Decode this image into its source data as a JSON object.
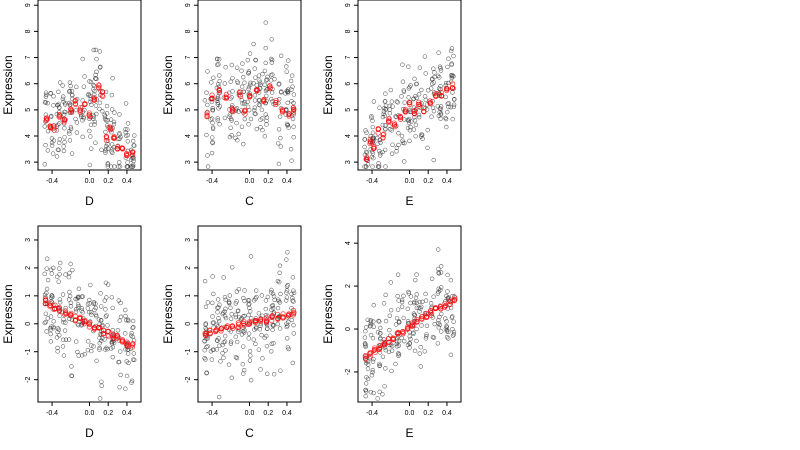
{
  "chart_data": [
    {
      "type": "scatter",
      "xlabel": "D",
      "ylabel": "Expression",
      "xlim": [
        -0.55,
        0.55
      ],
      "ylim": [
        2.7,
        9.2
      ],
      "xticks": [
        -0.4,
        0.0,
        0.2,
        0.4
      ],
      "xtick_labels": [
        "-0.4",
        "0.0",
        "0.2",
        "0.4"
      ],
      "yticks": [
        3,
        4,
        5,
        6,
        7,
        8,
        9
      ],
      "ytick_labels": [
        "3",
        "4",
        "5",
        "6",
        "7",
        "8",
        "9"
      ],
      "fit_points": [
        {
          "x": -0.46,
          "y": 4.6
        },
        {
          "x": -0.42,
          "y": 4.4
        },
        {
          "x": -0.38,
          "y": 4.3
        },
        {
          "x": -0.32,
          "y": 4.8
        },
        {
          "x": -0.27,
          "y": 4.6
        },
        {
          "x": -0.2,
          "y": 5.0
        },
        {
          "x": -0.15,
          "y": 5.3
        },
        {
          "x": -0.1,
          "y": 5.0
        },
        {
          "x": -0.05,
          "y": 5.2
        },
        {
          "x": 0.0,
          "y": 4.8
        },
        {
          "x": 0.05,
          "y": 5.4
        },
        {
          "x": 0.1,
          "y": 5.9
        },
        {
          "x": 0.14,
          "y": 5.6
        },
        {
          "x": 0.18,
          "y": 3.9
        },
        {
          "x": 0.22,
          "y": 4.3
        },
        {
          "x": 0.26,
          "y": 4.0
        },
        {
          "x": 0.3,
          "y": 3.6
        },
        {
          "x": 0.35,
          "y": 3.5
        },
        {
          "x": 0.4,
          "y": 3.3
        },
        {
          "x": 0.46,
          "y": 3.3
        }
      ]
    },
    {
      "type": "scatter",
      "xlabel": "C",
      "ylabel": "Expression",
      "xlim": [
        -0.55,
        0.55
      ],
      "ylim": [
        2.7,
        9.2
      ],
      "xticks": [
        -0.4,
        0.0,
        0.2,
        0.4
      ],
      "xtick_labels": [
        "-0.4",
        "0.0",
        "0.2",
        "0.4"
      ],
      "yticks": [
        3,
        4,
        5,
        6,
        7,
        8,
        9
      ],
      "ytick_labels": [
        "3",
        "4",
        "5",
        "6",
        "7",
        "8",
        "9"
      ],
      "fit_points": [
        {
          "x": -0.45,
          "y": 4.8
        },
        {
          "x": -0.4,
          "y": 5.5
        },
        {
          "x": -0.32,
          "y": 5.7
        },
        {
          "x": -0.25,
          "y": 5.5
        },
        {
          "x": -0.18,
          "y": 5.0
        },
        {
          "x": -0.1,
          "y": 5.6
        },
        {
          "x": -0.05,
          "y": 4.9
        },
        {
          "x": 0.0,
          "y": 5.5
        },
        {
          "x": 0.08,
          "y": 5.8
        },
        {
          "x": 0.15,
          "y": 5.4
        },
        {
          "x": 0.22,
          "y": 5.9
        },
        {
          "x": 0.28,
          "y": 5.3
        },
        {
          "x": 0.35,
          "y": 5.0
        },
        {
          "x": 0.42,
          "y": 4.8
        },
        {
          "x": 0.47,
          "y": 5.0
        }
      ]
    },
    {
      "type": "scatter",
      "xlabel": "E",
      "ylabel": "Expression",
      "xlim": [
        -0.55,
        0.55
      ],
      "ylim": [
        2.7,
        9.2
      ],
      "xticks": [
        -0.4,
        0.0,
        0.2,
        0.4
      ],
      "xtick_labels": [
        "-0.4",
        "0.0",
        "0.2",
        "0.4"
      ],
      "yticks": [
        3,
        4,
        5,
        6,
        7,
        8,
        9
      ],
      "ytick_labels": [
        "3",
        "4",
        "5",
        "6",
        "7",
        "8",
        "9"
      ],
      "fit_points": [
        {
          "x": -0.46,
          "y": 3.2
        },
        {
          "x": -0.42,
          "y": 3.8
        },
        {
          "x": -0.38,
          "y": 3.6
        },
        {
          "x": -0.33,
          "y": 4.2
        },
        {
          "x": -0.28,
          "y": 4.0
        },
        {
          "x": -0.22,
          "y": 4.6
        },
        {
          "x": -0.16,
          "y": 4.4
        },
        {
          "x": -0.1,
          "y": 4.7
        },
        {
          "x": -0.04,
          "y": 5.0
        },
        {
          "x": 0.0,
          "y": 5.2
        },
        {
          "x": 0.05,
          "y": 4.9
        },
        {
          "x": 0.1,
          "y": 5.2
        },
        {
          "x": 0.15,
          "y": 5.0
        },
        {
          "x": 0.22,
          "y": 5.3
        },
        {
          "x": 0.28,
          "y": 5.6
        },
        {
          "x": 0.34,
          "y": 5.6
        },
        {
          "x": 0.4,
          "y": 5.8
        },
        {
          "x": 0.46,
          "y": 5.9
        }
      ]
    },
    {
      "type": "scatter",
      "xlabel": "D",
      "ylabel": "Expression",
      "xlim": [
        -0.55,
        0.55
      ],
      "ylim": [
        -2.8,
        3.5
      ],
      "xticks": [
        -0.4,
        0.0,
        0.2,
        0.4
      ],
      "xtick_labels": [
        "-0.4",
        "0.0",
        "0.2",
        "0.4"
      ],
      "yticks": [
        -2,
        -1,
        0,
        1,
        2,
        3
      ],
      "ytick_labels": [
        "-2",
        "-1",
        "0",
        "1",
        "2",
        "3"
      ],
      "fit_points": [
        {
          "x": -0.47,
          "y": 0.8
        },
        {
          "x": -0.42,
          "y": 0.7
        },
        {
          "x": -0.37,
          "y": 0.6
        },
        {
          "x": -0.32,
          "y": 0.5
        },
        {
          "x": -0.26,
          "y": 0.4
        },
        {
          "x": -0.2,
          "y": 0.3
        },
        {
          "x": -0.15,
          "y": 0.2
        },
        {
          "x": -0.1,
          "y": 0.15
        },
        {
          "x": -0.05,
          "y": 0.05
        },
        {
          "x": 0.0,
          "y": -0.05
        },
        {
          "x": 0.05,
          "y": -0.1
        },
        {
          "x": 0.1,
          "y": -0.2
        },
        {
          "x": 0.15,
          "y": -0.3
        },
        {
          "x": 0.2,
          "y": -0.35
        },
        {
          "x": 0.25,
          "y": -0.45
        },
        {
          "x": 0.3,
          "y": -0.5
        },
        {
          "x": 0.35,
          "y": -0.6
        },
        {
          "x": 0.4,
          "y": -0.7
        },
        {
          "x": 0.46,
          "y": -0.8
        }
      ]
    },
    {
      "type": "scatter",
      "xlabel": "C",
      "ylabel": "Expression",
      "xlim": [
        -0.55,
        0.55
      ],
      "ylim": [
        -2.8,
        3.5
      ],
      "xticks": [
        -0.4,
        0.0,
        0.2,
        0.4
      ],
      "xtick_labels": [
        "-0.4",
        "0.0",
        "0.2",
        "0.4"
      ],
      "yticks": [
        -2,
        -1,
        0,
        1,
        2,
        3
      ],
      "ytick_labels": [
        "-2",
        "-1",
        "0",
        "1",
        "2",
        "3"
      ],
      "fit_points": [
        {
          "x": -0.47,
          "y": -0.35
        },
        {
          "x": -0.42,
          "y": -0.3
        },
        {
          "x": -0.36,
          "y": -0.25
        },
        {
          "x": -0.3,
          "y": -0.2
        },
        {
          "x": -0.24,
          "y": -0.15
        },
        {
          "x": -0.18,
          "y": -0.1
        },
        {
          "x": -0.12,
          "y": -0.05
        },
        {
          "x": -0.06,
          "y": 0.0
        },
        {
          "x": 0.0,
          "y": 0.02
        },
        {
          "x": 0.06,
          "y": 0.05
        },
        {
          "x": 0.12,
          "y": 0.1
        },
        {
          "x": 0.18,
          "y": 0.15
        },
        {
          "x": 0.24,
          "y": 0.2
        },
        {
          "x": 0.3,
          "y": 0.25
        },
        {
          "x": 0.36,
          "y": 0.3
        },
        {
          "x": 0.42,
          "y": 0.35
        },
        {
          "x": 0.47,
          "y": 0.4
        }
      ]
    },
    {
      "type": "scatter",
      "xlabel": "E",
      "ylabel": "Expression",
      "xlim": [
        -0.55,
        0.55
      ],
      "ylim": [
        -3.4,
        4.8
      ],
      "xticks": [
        -0.4,
        0.0,
        0.2,
        0.4
      ],
      "xtick_labels": [
        "-0.4",
        "0.0",
        "0.2",
        "0.4"
      ],
      "yticks": [
        -2,
        0,
        2,
        4
      ],
      "ytick_labels": [
        "-2",
        "0",
        "2",
        "4"
      ],
      "fit_points": [
        {
          "x": -0.47,
          "y": -1.3
        },
        {
          "x": -0.42,
          "y": -1.15
        },
        {
          "x": -0.37,
          "y": -1.0
        },
        {
          "x": -0.32,
          "y": -0.85
        },
        {
          "x": -0.27,
          "y": -0.7
        },
        {
          "x": -0.22,
          "y": -0.55
        },
        {
          "x": -0.17,
          "y": -0.4
        },
        {
          "x": -0.12,
          "y": -0.25
        },
        {
          "x": -0.07,
          "y": -0.1
        },
        {
          "x": -0.02,
          "y": 0.05
        },
        {
          "x": 0.03,
          "y": 0.2
        },
        {
          "x": 0.08,
          "y": 0.35
        },
        {
          "x": 0.13,
          "y": 0.5
        },
        {
          "x": 0.18,
          "y": 0.6
        },
        {
          "x": 0.23,
          "y": 0.75
        },
        {
          "x": 0.28,
          "y": 0.9
        },
        {
          "x": 0.33,
          "y": 1.0
        },
        {
          "x": 0.38,
          "y": 1.1
        },
        {
          "x": 0.43,
          "y": 1.25
        },
        {
          "x": 0.48,
          "y": 1.35
        }
      ]
    }
  ],
  "colors": {
    "points": "#333333",
    "fit": "#ff0000"
  }
}
